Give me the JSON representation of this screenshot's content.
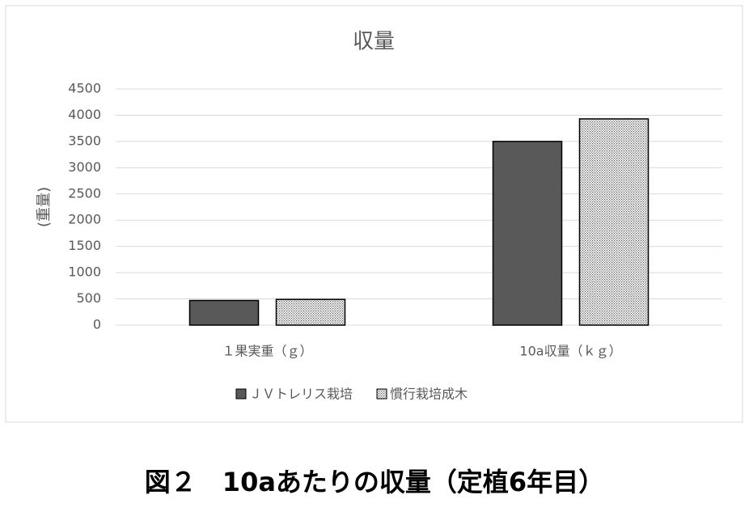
{
  "chart_data": {
    "type": "bar",
    "title": "収量",
    "y_label": "(重量)",
    "categories": [
      "１果実重（ｇ）",
      "10a収量（ｋｇ）"
    ],
    "series": [
      {
        "name": "ＪＶトレリス栽培",
        "color": "#595959",
        "pattern": "solid",
        "values": [
          470,
          3500
        ]
      },
      {
        "name": "慣行栽培成木",
        "color": "#595959",
        "pattern": "dots",
        "values": [
          490,
          3930
        ]
      }
    ],
    "ylim": [
      0,
      4500
    ],
    "yticks": [
      0,
      500,
      1000,
      1500,
      2000,
      2500,
      3000,
      3500,
      4000,
      4500
    ],
    "grid": true,
    "legend": "bottom",
    "caption": "図２　10aあたりの収量（定植6年目）"
  }
}
